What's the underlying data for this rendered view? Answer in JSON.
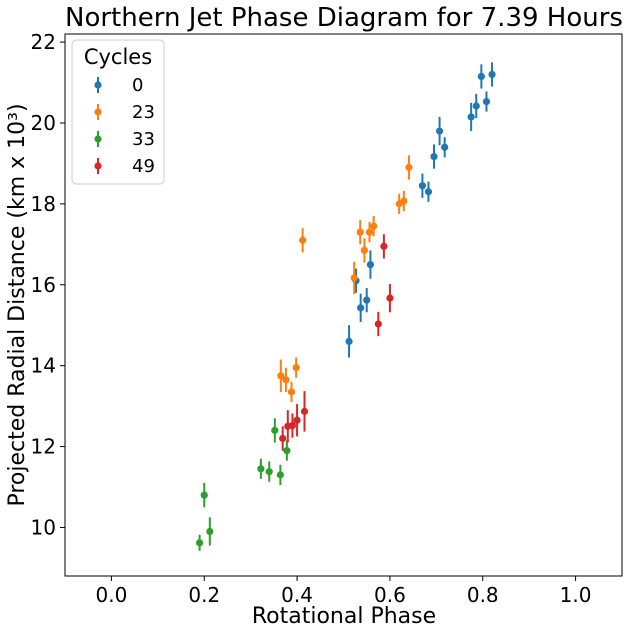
{
  "chart_data": {
    "type": "scatter",
    "title": "Northern Jet Phase Diagram for 7.39 Hours",
    "xlabel": "Rotational Phase",
    "ylabel": "Projected Radial Distance (km x 10³)",
    "xlim": [
      -0.1,
      1.1
    ],
    "ylim": [
      8.8,
      22.2
    ],
    "xticks": [
      "0.0",
      "0.2",
      "0.4",
      "0.6",
      "0.8",
      "1.0"
    ],
    "yticks": [
      "10",
      "12",
      "14",
      "16",
      "18",
      "20",
      "22"
    ],
    "legend": {
      "title": "Cycles",
      "position": "top-left"
    },
    "series": [
      {
        "name": "0",
        "color": "#1f77b4",
        "points": [
          {
            "x": 0.512,
            "y": 14.6,
            "err": 0.4
          },
          {
            "x": 0.527,
            "y": 16.1,
            "err": 0.3
          },
          {
            "x": 0.537,
            "y": 15.43,
            "err": 0.35
          },
          {
            "x": 0.55,
            "y": 15.62,
            "err": 0.3
          },
          {
            "x": 0.558,
            "y": 16.5,
            "err": 0.35
          },
          {
            "x": 0.67,
            "y": 18.45,
            "err": 0.3
          },
          {
            "x": 0.683,
            "y": 18.3,
            "err": 0.25
          },
          {
            "x": 0.695,
            "y": 19.17,
            "err": 0.3
          },
          {
            "x": 0.707,
            "y": 19.8,
            "err": 0.35
          },
          {
            "x": 0.718,
            "y": 19.4,
            "err": 0.25
          },
          {
            "x": 0.775,
            "y": 20.15,
            "err": 0.35
          },
          {
            "x": 0.786,
            "y": 20.42,
            "err": 0.3
          },
          {
            "x": 0.797,
            "y": 21.15,
            "err": 0.3
          },
          {
            "x": 0.808,
            "y": 20.53,
            "err": 0.25
          },
          {
            "x": 0.82,
            "y": 21.2,
            "err": 0.3
          }
        ]
      },
      {
        "name": "23",
        "color": "#ff7f0e",
        "points": [
          {
            "x": 0.365,
            "y": 13.75,
            "err": 0.4
          },
          {
            "x": 0.376,
            "y": 13.65,
            "err": 0.3
          },
          {
            "x": 0.388,
            "y": 13.35,
            "err": 0.25
          },
          {
            "x": 0.398,
            "y": 13.95,
            "err": 0.25
          },
          {
            "x": 0.412,
            "y": 17.1,
            "err": 0.3
          },
          {
            "x": 0.523,
            "y": 16.17,
            "err": 0.4
          },
          {
            "x": 0.536,
            "y": 17.3,
            "err": 0.3
          },
          {
            "x": 0.545,
            "y": 16.85,
            "err": 0.3
          },
          {
            "x": 0.556,
            "y": 17.3,
            "err": 0.25
          },
          {
            "x": 0.565,
            "y": 17.45,
            "err": 0.25
          },
          {
            "x": 0.62,
            "y": 18.0,
            "err": 0.25
          },
          {
            "x": 0.63,
            "y": 18.07,
            "err": 0.25
          },
          {
            "x": 0.641,
            "y": 18.9,
            "err": 0.3
          }
        ]
      },
      {
        "name": "33",
        "color": "#2ca02c",
        "points": [
          {
            "x": 0.19,
            "y": 9.62,
            "err": 0.2
          },
          {
            "x": 0.2,
            "y": 10.8,
            "err": 0.3
          },
          {
            "x": 0.212,
            "y": 9.9,
            "err": 0.35
          },
          {
            "x": 0.322,
            "y": 11.45,
            "err": 0.25
          },
          {
            "x": 0.34,
            "y": 11.38,
            "err": 0.25
          },
          {
            "x": 0.352,
            "y": 12.4,
            "err": 0.3
          },
          {
            "x": 0.364,
            "y": 11.3,
            "err": 0.25
          },
          {
            "x": 0.378,
            "y": 11.9,
            "err": 0.25
          }
        ]
      },
      {
        "name": "49",
        "color": "#d62728",
        "points": [
          {
            "x": 0.369,
            "y": 12.2,
            "err": 0.3
          },
          {
            "x": 0.38,
            "y": 12.5,
            "err": 0.4
          },
          {
            "x": 0.39,
            "y": 12.52,
            "err": 0.3
          },
          {
            "x": 0.4,
            "y": 12.65,
            "err": 0.4
          },
          {
            "x": 0.416,
            "y": 12.87,
            "err": 0.5
          },
          {
            "x": 0.575,
            "y": 15.03,
            "err": 0.3
          },
          {
            "x": 0.587,
            "y": 16.95,
            "err": 0.3
          },
          {
            "x": 0.6,
            "y": 15.67,
            "err": 0.35
          }
        ]
      }
    ]
  }
}
